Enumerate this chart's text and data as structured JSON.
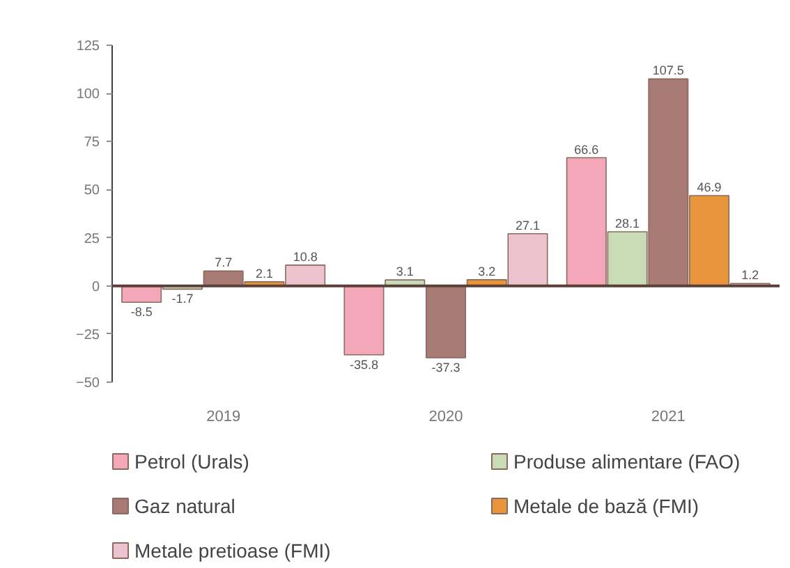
{
  "chart_data": {
    "type": "bar",
    "categories": [
      "2019",
      "2020",
      "2021"
    ],
    "ylim": [
      -50,
      125
    ],
    "yticks": [
      -50,
      -25,
      0,
      25,
      50,
      75,
      100,
      125
    ],
    "series": [
      {
        "name": "Petrol (Urals)",
        "color": "#f4a7b9",
        "values": [
          -8.5,
          -35.8,
          66.6
        ]
      },
      {
        "name": "Produse alimentare (FAO)",
        "color": "#c9dcb6",
        "values": [
          -1.7,
          3.1,
          28.1
        ]
      },
      {
        "name": "Gaz natural",
        "color": "#a87a74",
        "values": [
          7.7,
          -37.3,
          107.5
        ]
      },
      {
        "name": "Metale de bază (FMI)",
        "color": "#e8953c",
        "values": [
          2.1,
          3.2,
          46.9
        ]
      },
      {
        "name": "Metale pretioase (FMI)",
        "color": "#ecc3cf",
        "values": [
          10.8,
          27.1,
          1.2
        ]
      }
    ],
    "data_labels": true,
    "legend": "bottom"
  }
}
